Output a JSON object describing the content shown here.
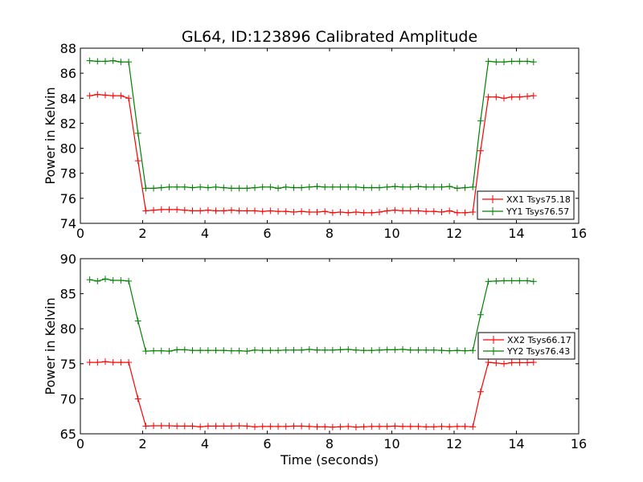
{
  "chart_data": [
    {
      "type": "line",
      "title": "GL64, ID:123896 Calibrated Amplitude",
      "xlabel": "",
      "ylabel": "Power in Kelvin",
      "xlim": [
        0,
        16
      ],
      "ylim": [
        74,
        88
      ],
      "xticks": [
        "0",
        "2",
        "4",
        "6",
        "8",
        "10",
        "12",
        "14",
        "16"
      ],
      "yticks": [
        "74",
        "76",
        "78",
        "80",
        "82",
        "84",
        "86",
        "88"
      ],
      "legend_position": "lower-right",
      "grid": false,
      "x": [
        0.3,
        0.55,
        0.8,
        1.05,
        1.3,
        1.55,
        1.85,
        2.1,
        2.35,
        2.6,
        2.85,
        3.1,
        3.35,
        3.6,
        3.85,
        4.1,
        4.35,
        4.6,
        4.85,
        5.1,
        5.35,
        5.6,
        5.85,
        6.1,
        6.35,
        6.6,
        6.85,
        7.1,
        7.35,
        7.6,
        7.85,
        8.1,
        8.35,
        8.6,
        8.85,
        9.1,
        9.35,
        9.6,
        9.85,
        10.1,
        10.35,
        10.6,
        10.85,
        11.1,
        11.35,
        11.6,
        11.85,
        12.1,
        12.35,
        12.6,
        12.85,
        13.1,
        13.35,
        13.6,
        13.85,
        14.1,
        14.35,
        14.55
      ],
      "series": [
        {
          "name": "XX1 Tsys75.18",
          "color": "#ff0000",
          "values": [
            84.2,
            84.3,
            84.25,
            84.2,
            84.2,
            84.0,
            79.0,
            75.0,
            75.05,
            75.1,
            75.1,
            75.1,
            75.05,
            75.0,
            75.0,
            75.05,
            75.0,
            75.0,
            75.05,
            75.0,
            75.0,
            75.0,
            74.95,
            75.0,
            74.95,
            74.95,
            74.9,
            74.95,
            74.9,
            74.9,
            74.95,
            74.85,
            74.9,
            74.85,
            74.9,
            74.85,
            74.85,
            74.9,
            75.0,
            75.05,
            75.0,
            75.0,
            75.0,
            74.95,
            74.95,
            74.9,
            75.0,
            74.85,
            74.85,
            74.9,
            79.8,
            84.1,
            84.1,
            84.0,
            84.1,
            84.1,
            84.15,
            84.2
          ]
        },
        {
          "name": "YY1 Tsys76.57",
          "color": "#008000",
          "values": [
            87.0,
            86.95,
            86.95,
            87.0,
            86.9,
            86.9,
            81.2,
            76.8,
            76.8,
            76.85,
            76.9,
            76.9,
            76.9,
            76.85,
            76.9,
            76.85,
            76.9,
            76.85,
            76.8,
            76.8,
            76.8,
            76.85,
            76.9,
            76.9,
            76.8,
            76.9,
            76.85,
            76.85,
            76.9,
            76.95,
            76.9,
            76.9,
            76.9,
            76.9,
            76.9,
            76.85,
            76.85,
            76.85,
            76.9,
            76.95,
            76.9,
            76.9,
            76.95,
            76.9,
            76.9,
            76.9,
            76.95,
            76.8,
            76.85,
            76.9,
            82.2,
            86.95,
            86.9,
            86.9,
            86.95,
            86.95,
            86.95,
            86.9
          ]
        }
      ]
    },
    {
      "type": "line",
      "title": "",
      "xlabel": "Time (seconds)",
      "ylabel": "Power in Kelvin",
      "xlim": [
        0,
        16
      ],
      "ylim": [
        65,
        90
      ],
      "xticks": [
        "0",
        "2",
        "4",
        "6",
        "8",
        "10",
        "12",
        "14",
        "16"
      ],
      "yticks": [
        "65",
        "70",
        "75",
        "80",
        "85",
        "90"
      ],
      "legend_position": "center-right",
      "grid": false,
      "x": [
        0.3,
        0.55,
        0.8,
        1.05,
        1.3,
        1.55,
        1.85,
        2.1,
        2.35,
        2.6,
        2.85,
        3.1,
        3.35,
        3.6,
        3.85,
        4.1,
        4.35,
        4.6,
        4.85,
        5.1,
        5.35,
        5.6,
        5.85,
        6.1,
        6.35,
        6.6,
        6.85,
        7.1,
        7.35,
        7.6,
        7.85,
        8.1,
        8.35,
        8.6,
        8.85,
        9.1,
        9.35,
        9.6,
        9.85,
        10.1,
        10.35,
        10.6,
        10.85,
        11.1,
        11.35,
        11.6,
        11.85,
        12.1,
        12.35,
        12.6,
        12.85,
        13.1,
        13.35,
        13.6,
        13.85,
        14.1,
        14.35,
        14.55
      ],
      "series": [
        {
          "name": "XX2 Tsys66.17",
          "color": "#ff0000",
          "values": [
            75.2,
            75.2,
            75.3,
            75.2,
            75.2,
            75.2,
            70.0,
            66.1,
            66.15,
            66.15,
            66.15,
            66.1,
            66.1,
            66.1,
            66.0,
            66.1,
            66.1,
            66.1,
            66.1,
            66.15,
            66.1,
            66.0,
            66.05,
            66.05,
            66.05,
            66.05,
            66.1,
            66.1,
            66.05,
            66.0,
            66.0,
            65.95,
            66.0,
            66.05,
            65.95,
            66.0,
            66.05,
            66.05,
            66.05,
            66.1,
            66.05,
            66.05,
            66.05,
            66.0,
            66.0,
            66.05,
            66.0,
            66.05,
            66.05,
            66.0,
            71.0,
            75.2,
            75.1,
            75.0,
            75.15,
            75.15,
            75.15,
            75.2
          ]
        },
        {
          "name": "YY2 Tsys76.43",
          "color": "#008000",
          "values": [
            87.0,
            86.8,
            87.1,
            86.9,
            86.9,
            86.8,
            81.1,
            76.8,
            76.85,
            76.85,
            76.8,
            77.0,
            77.0,
            76.9,
            76.9,
            76.9,
            76.9,
            76.9,
            76.85,
            76.85,
            76.8,
            76.95,
            76.9,
            76.9,
            76.9,
            76.95,
            76.95,
            76.95,
            77.05,
            76.95,
            76.95,
            76.95,
            77.0,
            77.05,
            76.95,
            76.9,
            76.9,
            76.95,
            77.0,
            77.0,
            77.05,
            76.95,
            76.95,
            76.95,
            76.95,
            76.9,
            76.85,
            76.9,
            76.85,
            76.9,
            82.0,
            86.75,
            86.8,
            86.85,
            86.85,
            86.85,
            86.85,
            86.75
          ]
        }
      ]
    }
  ]
}
